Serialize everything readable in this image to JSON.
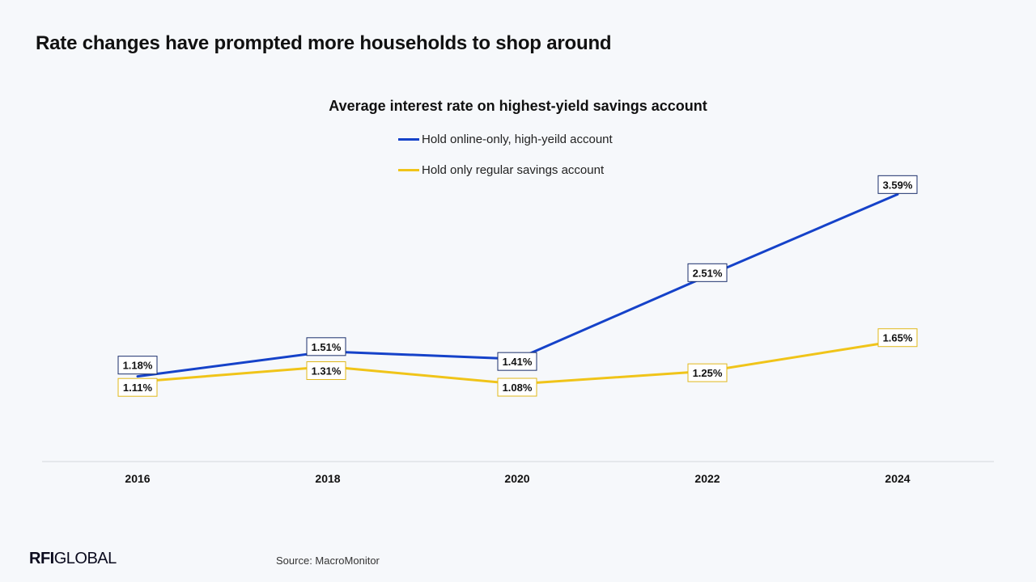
{
  "headline": "Rate changes have prompted more households to shop around",
  "footer": {
    "logo_bold": "RFI",
    "logo_rest": "GLOBAL",
    "source": "Source: MacroMonitor"
  },
  "chart_data": {
    "type": "line",
    "title": "Average interest rate on highest-yield savings account",
    "xlabel": "",
    "ylabel": "",
    "categories": [
      "2016",
      "2018",
      "2020",
      "2022",
      "2024"
    ],
    "series": [
      {
        "name": "Hold online-only, high-yeild account",
        "color": "#1542c9",
        "values": [
          1.18,
          1.51,
          1.41,
          2.51,
          3.59
        ],
        "labels": [
          "1.18%",
          "1.51%",
          "1.41%",
          "2.51%",
          "3.59%"
        ]
      },
      {
        "name": "Hold only regular savings account",
        "color": "#f0c419",
        "values": [
          1.11,
          1.31,
          1.08,
          1.25,
          1.65
        ],
        "labels": [
          "1.11%",
          "1.31%",
          "1.08%",
          "1.25%",
          "1.65%"
        ]
      }
    ],
    "ylim": [
      0,
      4
    ],
    "grid": false,
    "legend_position": "top-center"
  }
}
